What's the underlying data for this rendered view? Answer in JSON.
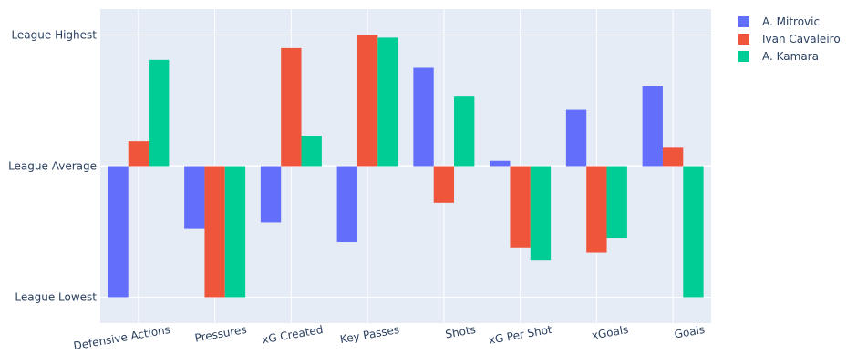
{
  "chart_data": {
    "type": "bar",
    "categories": [
      "Defensive Actions",
      "Pressures",
      "xG Created",
      "Key Passes",
      "Shots",
      "xG Per Shot",
      "xGoals",
      "Goals"
    ],
    "series": [
      {
        "name": "A. Mitrovic",
        "color": "#636efa",
        "values": [
          -1.0,
          -0.48,
          -0.43,
          -0.58,
          0.75,
          0.04,
          0.43,
          0.61
        ]
      },
      {
        "name": "Ivan Cavaleiro",
        "color": "#ef553b",
        "values": [
          0.19,
          -1.0,
          0.9,
          1.0,
          -0.28,
          -0.62,
          -0.66,
          0.14
        ]
      },
      {
        "name": "A. Kamara",
        "color": "#00cc96",
        "values": [
          0.81,
          -1.0,
          0.23,
          0.98,
          0.53,
          -0.72,
          -0.55,
          -1.0
        ]
      }
    ],
    "y_tick_labels": [
      {
        "value": 1,
        "label": "League Highest"
      },
      {
        "value": 0,
        "label": "League Average"
      },
      {
        "value": -1,
        "label": "League Lowest"
      }
    ],
    "ylim": [
      -1.19,
      1.2
    ],
    "grid": true,
    "legend": "top-right",
    "plot_bgcolor": "#e5ecf6"
  }
}
